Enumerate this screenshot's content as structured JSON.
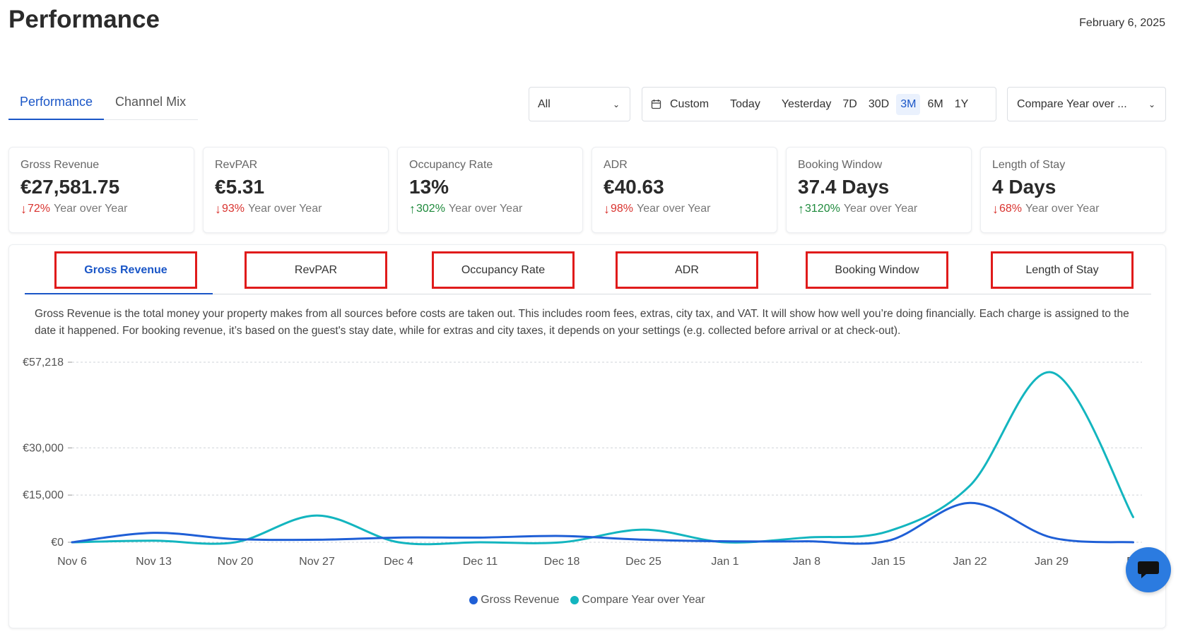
{
  "header": {
    "title": "Performance",
    "date": "February 6, 2025"
  },
  "view_tabs": [
    {
      "label": "Performance",
      "active": true
    },
    {
      "label": "Channel Mix",
      "active": false
    }
  ],
  "filters": {
    "property_select": "All",
    "date_ranges": [
      "Custom",
      "Today",
      "Yesterday",
      "7D",
      "30D",
      "3M",
      "6M",
      "1Y"
    ],
    "active_range": "3M",
    "compare_select": "Compare Year over ..."
  },
  "kpis": [
    {
      "label": "Gross Revenue",
      "value": "€27,581.75",
      "change": "72%",
      "direction": "down",
      "suffix": "Year over Year"
    },
    {
      "label": "RevPAR",
      "value": "€5.31",
      "change": "93%",
      "direction": "down",
      "suffix": "Year over Year"
    },
    {
      "label": "Occupancy Rate",
      "value": "13%",
      "change": "302%",
      "direction": "up",
      "suffix": "Year over Year"
    },
    {
      "label": "ADR",
      "value": "€40.63",
      "change": "98%",
      "direction": "down",
      "suffix": "Year over Year"
    },
    {
      "label": "Booking Window",
      "value": "37.4 Days",
      "change": "3120%",
      "direction": "up",
      "suffix": "Year over Year"
    },
    {
      "label": "Length of Stay",
      "value": "4 Days",
      "change": "68%",
      "direction": "down",
      "suffix": "Year over Year"
    }
  ],
  "metric_tabs": [
    {
      "label": "Gross Revenue",
      "active": true
    },
    {
      "label": "RevPAR",
      "active": false
    },
    {
      "label": "Occupancy Rate",
      "active": false
    },
    {
      "label": "ADR",
      "active": false
    },
    {
      "label": "Booking Window",
      "active": false
    },
    {
      "label": "Length of Stay",
      "active": false
    }
  ],
  "metric_description": "Gross Revenue is the total money your property makes from all sources before costs are taken out. This includes room fees, extras, city tax, and VAT. It will show how well you’re doing financially. Each charge is assigned to the date it happened. For booking revenue, it’s based on the guest's stay date, while for extras and city taxes, it depends on your settings (e.g. collected before arrival or at check-out).",
  "chart_data": {
    "type": "line",
    "x": [
      "Nov 6",
      "Nov 13",
      "Nov 20",
      "Nov 27",
      "Dec 4",
      "Dec 11",
      "Dec 18",
      "Dec 25",
      "Jan 1",
      "Jan 8",
      "Jan 15",
      "Jan 22",
      "Jan 29",
      "Feb 5"
    ],
    "x_tick_labels": [
      "Nov 6",
      "Nov 13",
      "Nov 20",
      "Nov 27",
      "Dec 4",
      "Dec 11",
      "Dec 18",
      "Dec 25",
      "Jan 1",
      "Jan 8",
      "Jan 15",
      "Jan 22",
      "Jan 29",
      "Fe"
    ],
    "y_ticks": [
      0,
      15000,
      30000,
      57218
    ],
    "y_tick_labels": [
      "€0",
      "€15,000",
      "€30,000",
      "€57,218"
    ],
    "ylim": [
      0,
      57218
    ],
    "grid": true,
    "legend_position": "bottom-center",
    "series": [
      {
        "name": "Gross Revenue",
        "color": "#1f5fd6",
        "values": [
          0,
          3000,
          1000,
          800,
          1500,
          1500,
          2000,
          800,
          300,
          300,
          500,
          12500,
          1500,
          0
        ]
      },
      {
        "name": "Compare Year over Year",
        "color": "#13b5bf",
        "values": [
          0,
          500,
          0,
          8500,
          0,
          0,
          0,
          4000,
          0,
          1500,
          3500,
          18000,
          54000,
          8000
        ]
      }
    ]
  },
  "colors": {
    "accent": "#1a56c7",
    "negative": "#d9332f",
    "positive": "#1e8a3c",
    "tab_highlight_border": "#e01b1b",
    "chat_button": "#2b7be0"
  },
  "icons": {
    "calendar": "calendar-icon",
    "chevron": "chevron-down-icon",
    "chat": "chat-icon"
  }
}
